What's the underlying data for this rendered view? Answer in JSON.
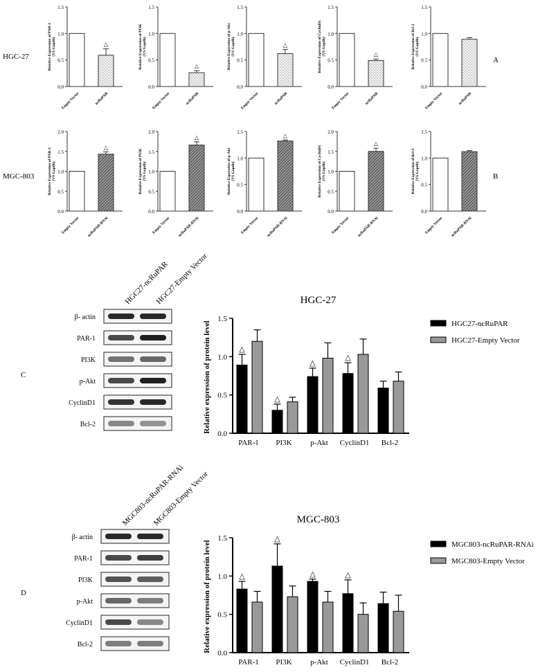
{
  "panels": [
    {
      "id": "A",
      "row_label": "HGC-27",
      "letter": "A",
      "charts": [
        {
          "type": "bar",
          "title": "",
          "ylabel": "Relative Expression of PAR-1",
          "ylabel2": "(VS Gapdh)",
          "categories": [
            "Empty Vector",
            "ncRuPAR"
          ],
          "values": [
            1.0,
            0.59
          ],
          "errors": [
            0,
            0.12
          ],
          "ylim": [
            0,
            1.5
          ],
          "yticks": [
            "0.0",
            "0.5",
            "1.0",
            "1.5"
          ],
          "marks": [
            "",
            "△"
          ],
          "pattern": "dots"
        },
        {
          "type": "bar",
          "title": "",
          "ylabel": "Relative Expression of PI3K",
          "ylabel2": "(VS Gapdh)",
          "categories": [
            "Empty Vector",
            "ncRuPAR"
          ],
          "values": [
            1.0,
            0.26
          ],
          "errors": [
            0,
            0.04
          ],
          "ylim": [
            0,
            1.5
          ],
          "yticks": [
            "0.0",
            "0.5",
            "1.0",
            "1.5"
          ],
          "marks": [
            "",
            "△"
          ],
          "pattern": "dots"
        },
        {
          "type": "bar",
          "title": "",
          "ylabel": "Relative Expression of p-Akt",
          "ylabel2": "(VS Gapdh)",
          "categories": [
            "Empty Vector",
            "ncRuPAR"
          ],
          "values": [
            1.0,
            0.62
          ],
          "errors": [
            0,
            0.08
          ],
          "ylim": [
            0,
            1.5
          ],
          "yticks": [
            "0.0",
            "0.5",
            "1.0",
            "1.5"
          ],
          "marks": [
            "",
            "△"
          ],
          "pattern": "dots"
        },
        {
          "type": "bar",
          "title": "",
          "ylabel": "Relative Expression of CyclinD1",
          "ylabel2": "(VS Gapdh)",
          "categories": [
            "Empty Vector",
            "ncRuPAR"
          ],
          "values": [
            1.0,
            0.49
          ],
          "errors": [
            0,
            0.03
          ],
          "ylim": [
            0,
            1.5
          ],
          "yticks": [
            "0.0",
            "0.5",
            "1.0",
            "1.5"
          ],
          "marks": [
            "",
            "△"
          ],
          "pattern": "dots"
        },
        {
          "type": "bar",
          "title": "",
          "ylabel": "Relative Expression of Bcl-2",
          "ylabel2": "(VS Gapdh)",
          "categories": [
            "Empty Vector",
            "ncRuPAR"
          ],
          "values": [
            1.0,
            0.89
          ],
          "errors": [
            0,
            0.03
          ],
          "ylim": [
            0,
            1.5
          ],
          "yticks": [
            "0.0",
            "0.5",
            "1.0",
            "1.5"
          ],
          "marks": [
            "",
            ""
          ],
          "pattern": "dots"
        }
      ]
    },
    {
      "id": "B",
      "row_label": "MGC-803",
      "letter": "B",
      "charts": [
        {
          "type": "bar",
          "title": "",
          "ylabel": "Relative Expression of PAR-1",
          "ylabel2": "(VS Gapdh)",
          "categories": [
            "Empty Vector",
            "ncRuPAR-RNAi"
          ],
          "values": [
            1.0,
            1.43
          ],
          "errors": [
            0,
            0.06
          ],
          "ylim": [
            0,
            2.0
          ],
          "yticks": [
            "0.0",
            "0.5",
            "1.0",
            "1.5",
            "2.0"
          ],
          "marks": [
            "",
            "△"
          ],
          "pattern": "hatch"
        },
        {
          "type": "bar",
          "title": "",
          "ylabel": "Relative Expression of PI3K",
          "ylabel2": "(VS Gapdh)",
          "categories": [
            "Empty Vector",
            "ncRuPAR-RNAi"
          ],
          "values": [
            1.0,
            1.66
          ],
          "errors": [
            0,
            0.08
          ],
          "ylim": [
            0,
            2.0
          ],
          "yticks": [
            "0.0",
            "0.5",
            "1.0",
            "1.5",
            "2.0"
          ],
          "marks": [
            "",
            "△"
          ],
          "pattern": "hatch"
        },
        {
          "type": "bar",
          "title": "",
          "ylabel": "Relative Expression of p-Akt",
          "ylabel2": "(VS Gapdh)",
          "categories": [
            "Empty Vector",
            "ncRuPAR-RNAi"
          ],
          "values": [
            1.0,
            1.32
          ],
          "errors": [
            0,
            0.02
          ],
          "ylim": [
            0,
            1.5
          ],
          "yticks": [
            "0.0",
            "0.5",
            "1.0",
            "1.5"
          ],
          "marks": [
            "",
            "△"
          ],
          "pattern": "hatch"
        },
        {
          "type": "bar",
          "title": "",
          "ylabel": "Relative Expression of CyclinD1",
          "ylabel2": "(VS Gapdh)",
          "categories": [
            "Empty Vector",
            "ncRuPAR-RNAi"
          ],
          "values": [
            1.0,
            1.5
          ],
          "errors": [
            0,
            0.08
          ],
          "ylim": [
            0,
            2.0
          ],
          "yticks": [
            "0.0",
            "0.5",
            "1.0",
            "1.5",
            "2.0"
          ],
          "marks": [
            "",
            "△"
          ],
          "pattern": "hatch"
        },
        {
          "type": "bar",
          "title": "",
          "ylabel": "Relative Expression of Bcl-2",
          "ylabel2": "(VS Gapdh)",
          "categories": [
            "Empty Vector",
            "ncRuPAR-RNAi"
          ],
          "values": [
            1.0,
            1.12
          ],
          "errors": [
            0,
            0.02
          ],
          "ylim": [
            0,
            1.5
          ],
          "yticks": [
            "0.0",
            "0.5",
            "1.0",
            "1.5"
          ],
          "marks": [
            "",
            ""
          ],
          "pattern": "hatch"
        }
      ]
    }
  ],
  "blots": [
    {
      "letter": "C",
      "lanes": [
        "HGC27-ncRuPAR",
        "HGC27-Empty Vector"
      ],
      "rows": [
        "β- actin",
        "PAR-1",
        "PI3K",
        "p-Akt",
        "CyclinD1",
        "Bcl-2"
      ]
    },
    {
      "letter": "D",
      "lanes": [
        "MGC803-ncRuPAR-RNAi",
        "MGC803-Empty Vector"
      ],
      "rows": [
        "β- actin",
        "PAR-1",
        "PI3K",
        "p-Akt",
        "CyclinD1",
        "Bcl-2"
      ]
    }
  ],
  "chart_data": [
    {
      "type": "bar",
      "title": "HGC-27",
      "xlabel": "",
      "ylabel": "Relative expression of protein level",
      "categories": [
        "PAR-1",
        "PI3K",
        "p-Akt",
        "CyclinD1",
        "Bcl-2"
      ],
      "series": [
        {
          "name": "HGC27-ncRuPAR",
          "values": [
            0.89,
            0.3,
            0.74,
            0.78,
            0.59
          ],
          "errors": [
            0.14,
            0.08,
            0.11,
            0.14,
            0.09
          ],
          "color": "#000000"
        },
        {
          "name": "HGC27-Empty Vector",
          "values": [
            1.2,
            0.41,
            0.98,
            1.03,
            0.68
          ],
          "errors": [
            0.15,
            0.06,
            0.2,
            0.2,
            0.12
          ],
          "color": "#999999"
        }
      ],
      "marks": [
        "△",
        "△",
        "△",
        "△",
        ""
      ],
      "ylim": [
        0,
        1.5
      ],
      "yticks": [
        "0.0",
        "0.5",
        "1.0",
        "1.5"
      ]
    },
    {
      "type": "bar",
      "title": "MGC-803",
      "xlabel": "",
      "ylabel": "Relative expression of protein level",
      "categories": [
        "PAR-1",
        "PI3K",
        "p-Akt",
        "CyclinD1",
        "Bcl-2"
      ],
      "series": [
        {
          "name": "MGC803-ncRuPAR-RNAi",
          "values": [
            0.83,
            1.13,
            0.93,
            0.77,
            0.64
          ],
          "errors": [
            0.1,
            0.29,
            0.03,
            0.18,
            0.15
          ],
          "color": "#000000"
        },
        {
          "name": "MGC803-Empty Vector",
          "values": [
            0.66,
            0.73,
            0.66,
            0.5,
            0.54
          ],
          "errors": [
            0.14,
            0.14,
            0.14,
            0.15,
            0.21
          ],
          "color": "#999999"
        }
      ],
      "marks": [
        "△",
        "△",
        "△",
        "△",
        ""
      ],
      "ylim": [
        0,
        1.5
      ],
      "yticks": [
        "0.0",
        "0.5",
        "1.0",
        "1.5"
      ]
    }
  ]
}
